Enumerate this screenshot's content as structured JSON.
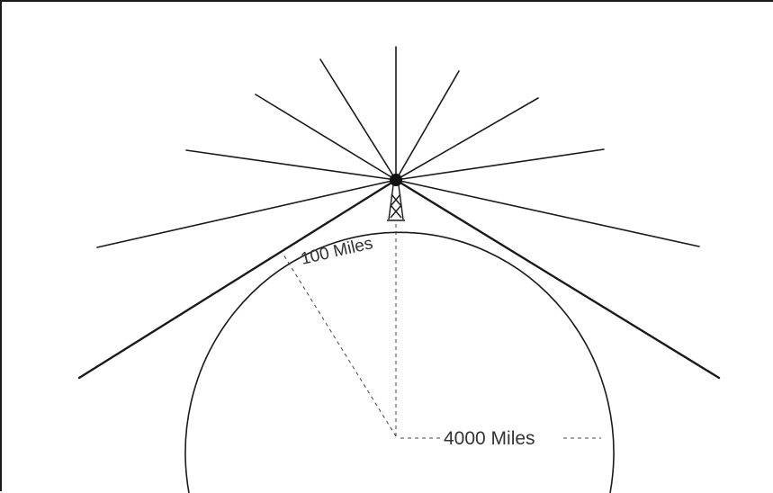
{
  "labels": {
    "near_distance": "100 Miles",
    "earth_radius": "4000 Miles"
  },
  "icons": {
    "tower": "radio-tower-icon"
  },
  "colors": {
    "ink": "#1a1a1a",
    "background": "#ffffff"
  }
}
